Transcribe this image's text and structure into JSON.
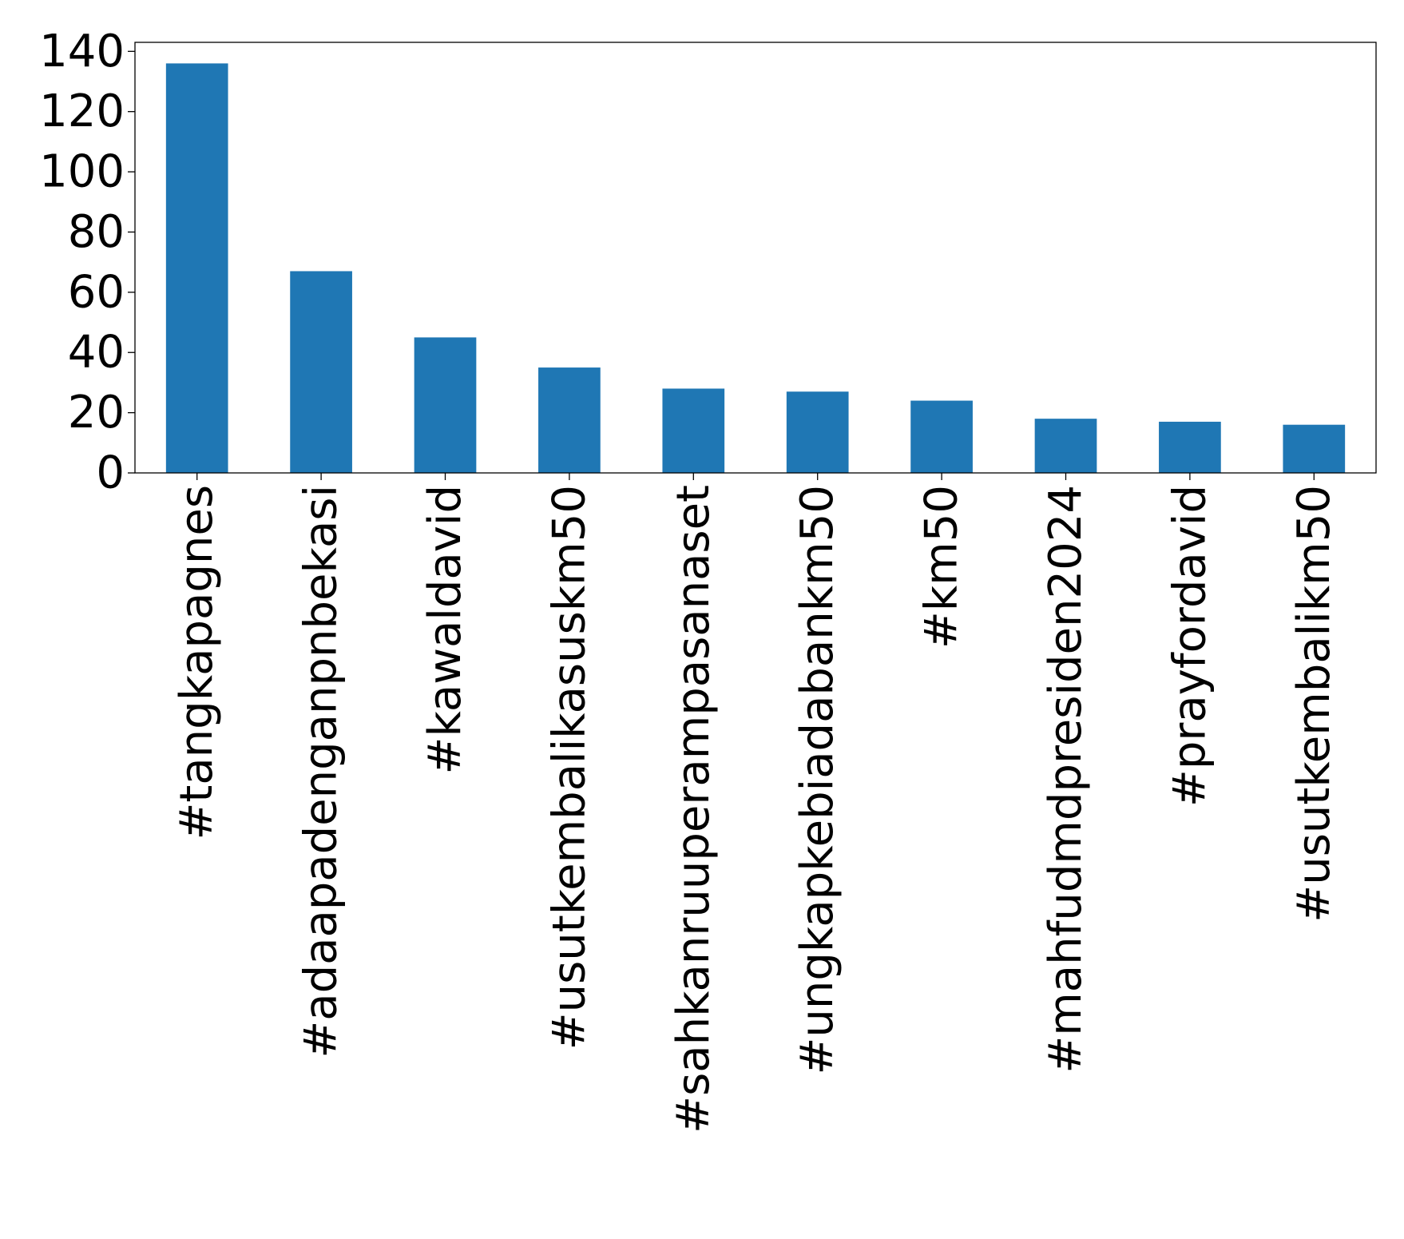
{
  "chart_data": {
    "type": "bar",
    "title": "",
    "xlabel": "",
    "ylabel": "",
    "categories": [
      "#tangkapagnes",
      "#adaapadenganpnbekasi",
      "#kawaldavid",
      "#usutkembalikasuskm50",
      "#sahkanruuperampasanaset",
      "#ungkapkebiadabankm50",
      "#km50",
      "#mahfudmdpresiden2024",
      "#prayfordavid",
      "#usutkembalikm50"
    ],
    "values": [
      136,
      67,
      45,
      35,
      28,
      27,
      24,
      18,
      17,
      16
    ],
    "ylim": [
      0,
      143
    ],
    "yticks": [
      0,
      20,
      40,
      60,
      80,
      100,
      120,
      140
    ],
    "grid": false,
    "colors": {
      "bar": "#1f77b4",
      "axis": "#000000"
    }
  }
}
